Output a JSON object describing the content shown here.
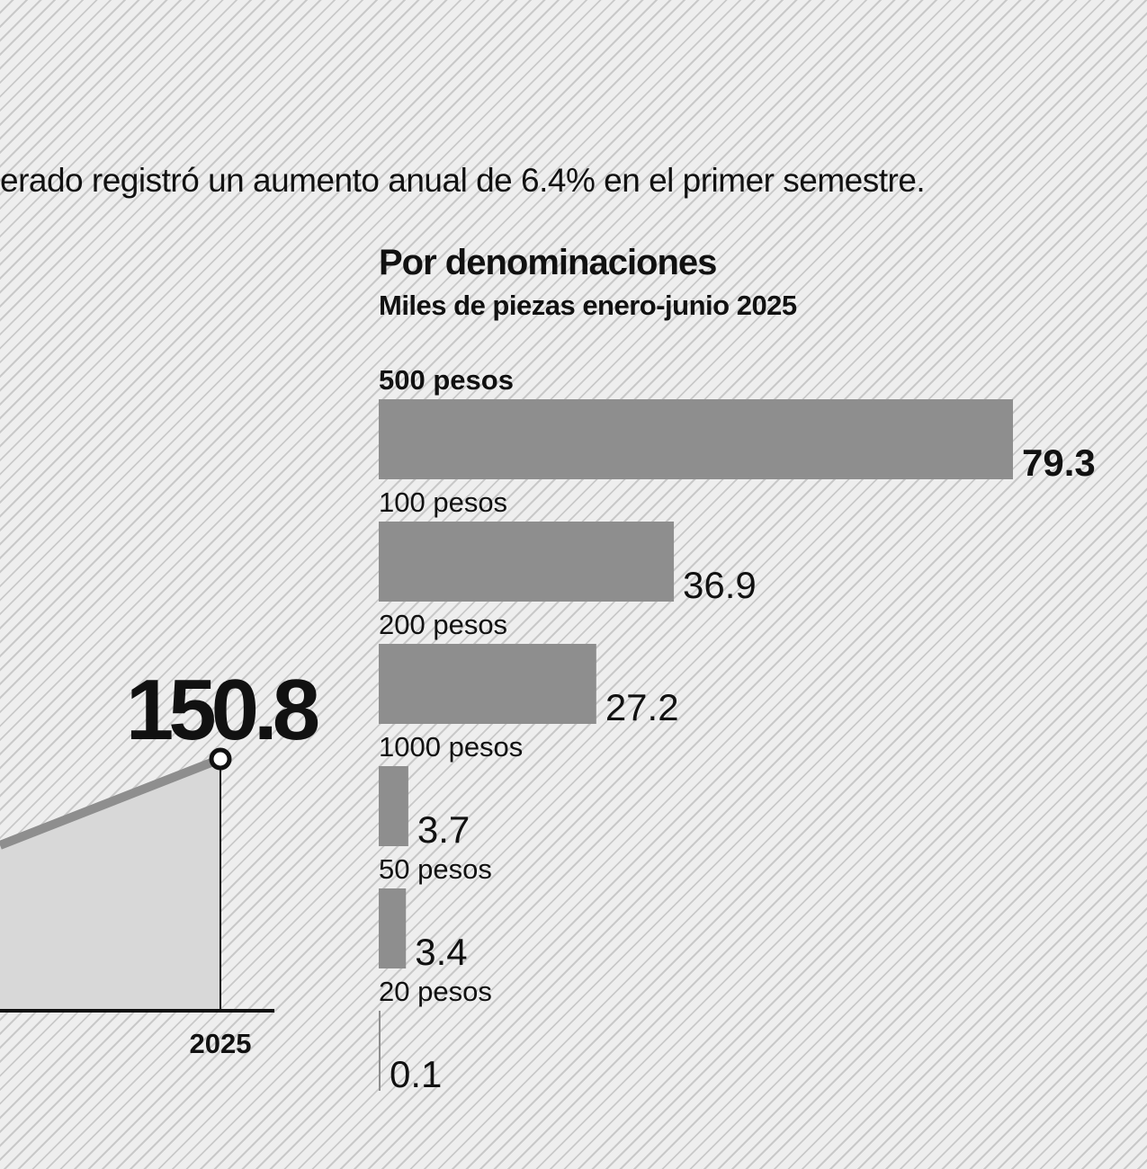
{
  "intro_text": "erado registró un aumento anual de 6.4% en el primer semestre.",
  "chart_data": [
    {
      "type": "area",
      "x": [
        "2025"
      ],
      "values": [
        150.8
      ],
      "value_label": "150.8",
      "xlabel": "",
      "ylabel": ""
    },
    {
      "type": "bar",
      "orientation": "horizontal",
      "title": "Por denominaciones",
      "subtitle": "Miles de piezas enero-junio 2025",
      "categories": [
        "500 pesos",
        "100 pesos",
        "200 pesos",
        "1000 pesos",
        "50 pesos",
        "20 pesos"
      ],
      "values": [
        79.3,
        36.9,
        27.2,
        3.7,
        3.4,
        0.1
      ],
      "value_labels": [
        "79.3",
        "36.9",
        "27.2",
        "3.7",
        "3.4",
        "0.1"
      ],
      "highlight_index": 0,
      "bar_color": "#8e8e8e"
    }
  ]
}
